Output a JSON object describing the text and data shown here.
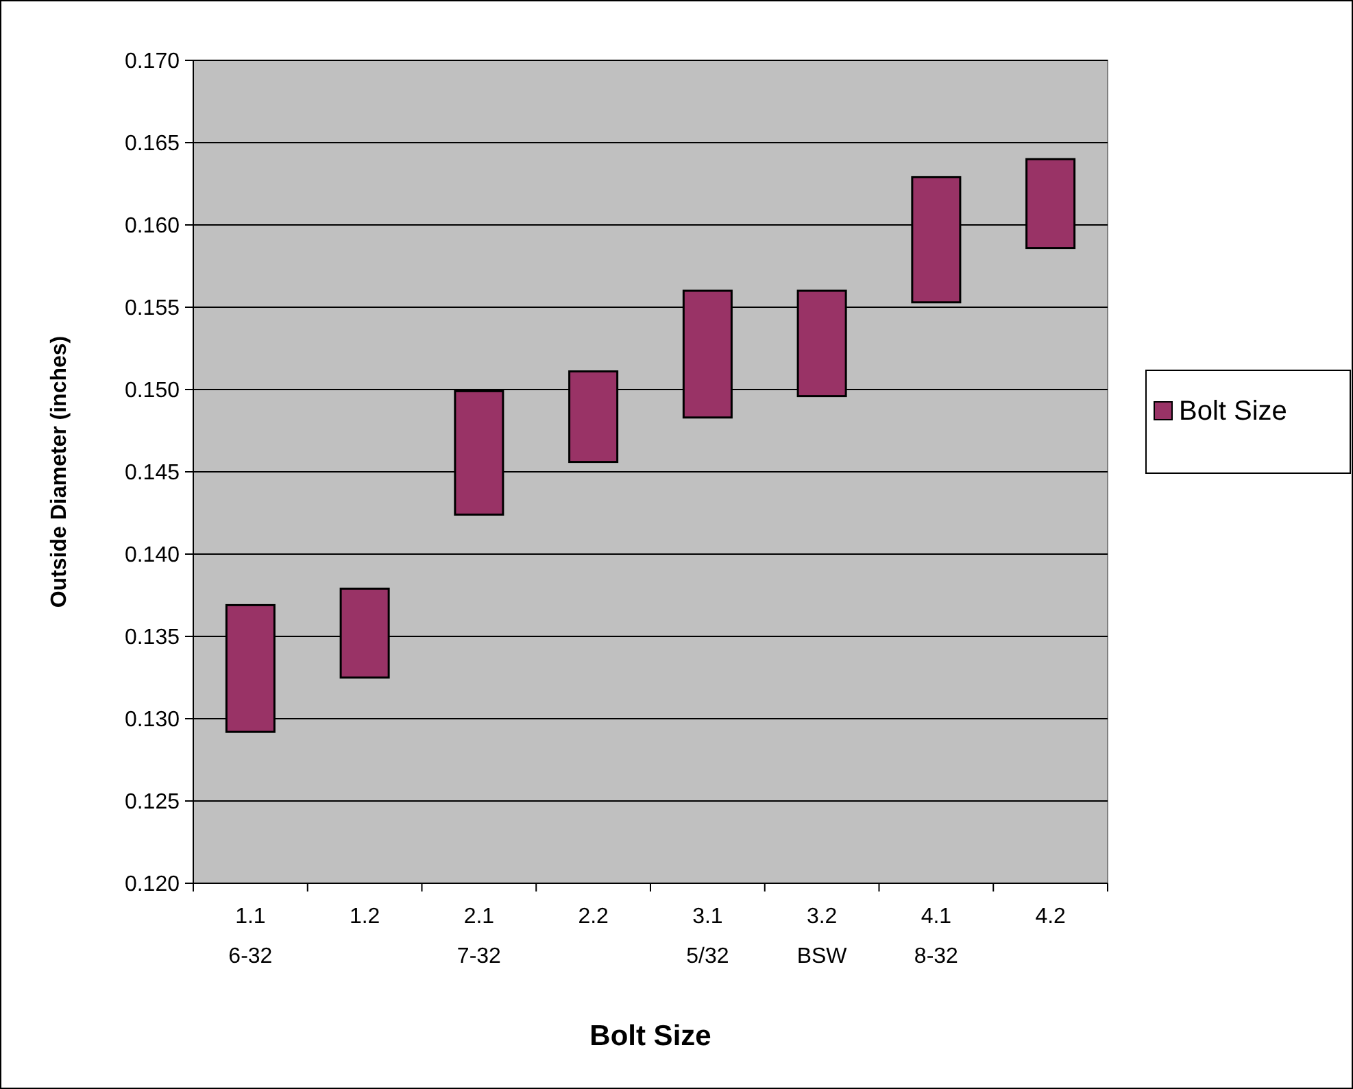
{
  "chart_data": {
    "type": "bar",
    "xlabel": "Bolt Size",
    "ylabel": "Outside Diameter (inches)",
    "categories": [
      "1.1\n6-32",
      "1.2",
      "2.1\n7-32",
      "2.2",
      "3.1\n5/32",
      "3.2\nBSW",
      "4.1\n8-32",
      "4.2"
    ],
    "series": [
      {
        "name": "Bolt Size",
        "color": "#993366",
        "base": [
          0.1292,
          0.1325,
          0.1424,
          0.1456,
          0.1483,
          0.1496,
          0.1553,
          0.1586
        ],
        "values": [
          0.0077,
          0.0054,
          0.0075,
          0.0055,
          0.0077,
          0.0064,
          0.0076,
          0.0054
        ]
      }
    ],
    "ylim": [
      0.12,
      0.17
    ],
    "yticks": [
      {
        "value": 0.12,
        "label": "0.120"
      },
      {
        "value": 0.125,
        "label": "0.125"
      },
      {
        "value": 0.13,
        "label": "0.130"
      },
      {
        "value": 0.135,
        "label": "0.135"
      },
      {
        "value": 0.14,
        "label": "0.140"
      },
      {
        "value": 0.145,
        "label": "0.145"
      },
      {
        "value": 0.15,
        "label": "0.150"
      },
      {
        "value": 0.155,
        "label": "0.155"
      },
      {
        "value": 0.16,
        "label": "0.160"
      },
      {
        "value": 0.165,
        "label": "0.165"
      },
      {
        "value": 0.17,
        "label": "0.170"
      }
    ],
    "grid": "y",
    "legend": "right"
  }
}
